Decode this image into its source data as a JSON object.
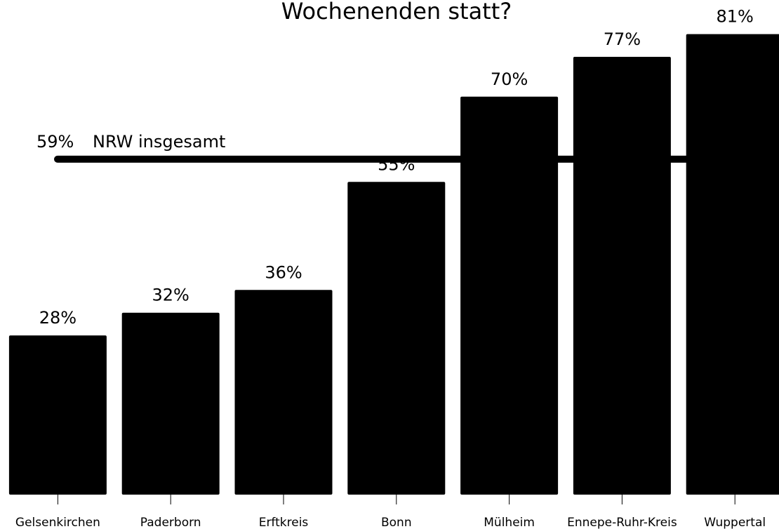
{
  "chart_data": {
    "type": "bar",
    "title": "Wochenenden statt?",
    "categories": [
      "Gelsenkirchen",
      "Paderborn",
      "Erftkreis",
      "Bonn",
      "Mülheim",
      "Ennepe-Ruhr-Kreis",
      "Wuppertal"
    ],
    "values": [
      28,
      32,
      36,
      55,
      70,
      77,
      81
    ],
    "value_labels": [
      "28%",
      "32%",
      "36%",
      "55%",
      "70%",
      "77%",
      "81%"
    ],
    "color": "#000000",
    "ylim": [
      0,
      87
    ],
    "reference_line": {
      "value": 59,
      "value_label": "59%",
      "label": "NRW insgesamt"
    }
  }
}
